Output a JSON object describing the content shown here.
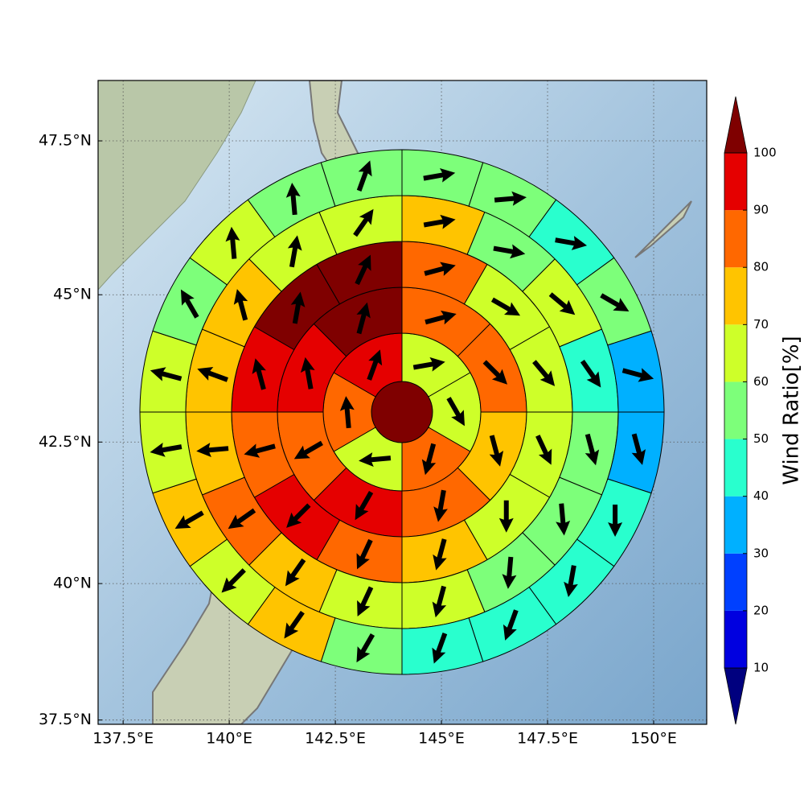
{
  "chart_data": {
    "type": "polar-grid-map",
    "xlim": [
      136.91,
      151.25
    ],
    "ylim": [
      37.42,
      48.45
    ],
    "xticks": [
      {
        "value": 137.5,
        "label": "137.5°E"
      },
      {
        "value": 140,
        "label": "140°E"
      },
      {
        "value": 142.5,
        "label": "142.5°E"
      },
      {
        "value": 145,
        "label": "145°E"
      },
      {
        "value": 147.5,
        "label": "147.5°E"
      },
      {
        "value": 150,
        "label": "150°E"
      }
    ],
    "yticks": [
      {
        "value": 37.5,
        "label": "37.5°N"
      },
      {
        "value": 40,
        "label": "40°N"
      },
      {
        "value": 42.5,
        "label": "42.5°N"
      },
      {
        "value": 45,
        "label": "45°N"
      },
      {
        "value": 47.5,
        "label": "47.5°N"
      }
    ],
    "grid": true,
    "rings": [
      {
        "values": [
          105
        ]
      },
      {
        "values": [
          65,
          65,
          85,
          65,
          85,
          95
        ],
        "directions": [
          80,
          150,
          195,
          265,
          355,
          20
        ]
      },
      {
        "values": [
          85,
          85,
          75,
          85,
          95,
          85,
          95,
          105
        ],
        "directions": [
          75,
          135,
          165,
          190,
          210,
          240,
          350,
          15
        ]
      },
      {
        "values": [
          85,
          65,
          65,
          65,
          65,
          75,
          85,
          95,
          85,
          95,
          105,
          105
        ],
        "directions": [
          75,
          120,
          140,
          155,
          180,
          195,
          205,
          225,
          255,
          345,
          10,
          25
        ]
      },
      {
        "values": [
          75,
          55,
          65,
          45,
          55,
          55,
          55,
          65,
          65,
          75,
          85,
          75,
          75,
          75,
          65,
          65
        ],
        "directions": [
          80,
          100,
          130,
          145,
          165,
          175,
          185,
          195,
          205,
          215,
          235,
          265,
          290,
          345,
          10,
          35
        ]
      },
      {
        "values": [
          55,
          55,
          45,
          55,
          35,
          35,
          45,
          45,
          45,
          45,
          55,
          75,
          65,
          75,
          65,
          65,
          55,
          65,
          55,
          55
        ],
        "directions": [
          80,
          85,
          100,
          120,
          105,
          165,
          180,
          190,
          200,
          200,
          210,
          215,
          225,
          240,
          260,
          285,
          330,
          355,
          355,
          20
        ]
      }
    ],
    "colorbar": {
      "label": "Wind Ratio[%]",
      "ticks": [
        10,
        20,
        30,
        40,
        50,
        60,
        70,
        80,
        90,
        100
      ],
      "colors": [
        "#00007f",
        "#0000e0",
        "#0040ff",
        "#00b0ff",
        "#29ffce",
        "#7dff7a",
        "#ceff29",
        "#ffc400",
        "#ff6800",
        "#e50000",
        "#7f0000"
      ]
    }
  }
}
